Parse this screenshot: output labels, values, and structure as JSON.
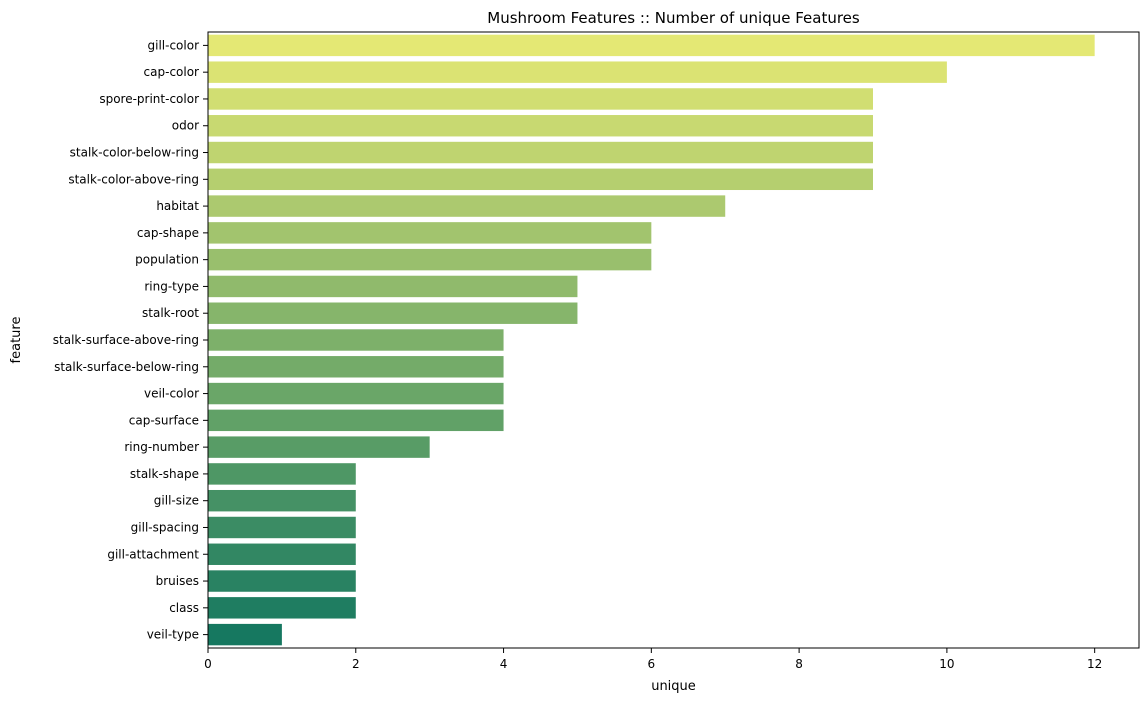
{
  "chart_data": {
    "type": "bar",
    "orientation": "horizontal",
    "title": "Mushroom Features :: Number of unique Features",
    "xlabel": "unique",
    "ylabel": "feature",
    "xlim": [
      0,
      12.6
    ],
    "xticks": [
      0,
      2,
      4,
      6,
      8,
      10,
      12
    ],
    "grid": false,
    "colormap": "summer_r",
    "categories": [
      "gill-color",
      "cap-color",
      "spore-print-color",
      "odor",
      "stalk-color-below-ring",
      "stalk-color-above-ring",
      "habitat",
      "cap-shape",
      "population",
      "ring-type",
      "stalk-root",
      "stalk-surface-above-ring",
      "stalk-surface-below-ring",
      "veil-color",
      "cap-surface",
      "ring-number",
      "stalk-shape",
      "gill-size",
      "gill-spacing",
      "gill-attachment",
      "bruises",
      "class",
      "veil-type"
    ],
    "values": [
      12,
      10,
      9,
      9,
      9,
      9,
      7,
      6,
      6,
      5,
      5,
      4,
      4,
      4,
      4,
      3,
      2,
      2,
      2,
      2,
      2,
      2,
      1
    ],
    "colors": {
      "start": "#e4e874",
      "end": "#167860"
    }
  }
}
